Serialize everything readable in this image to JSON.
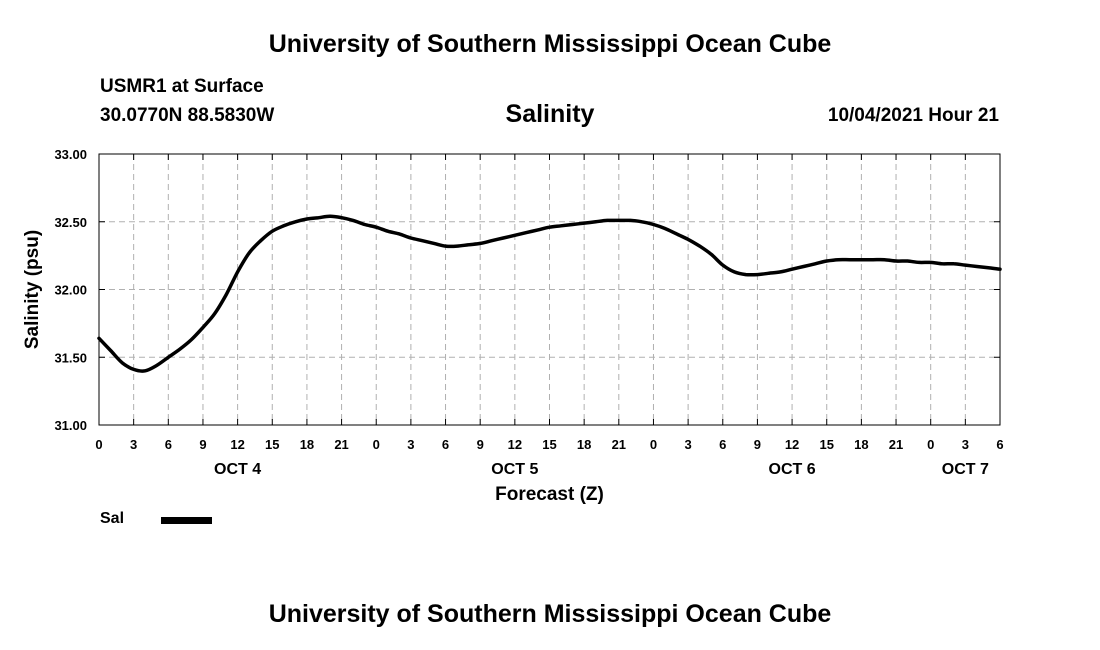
{
  "header": {
    "title": "University of Southern Mississippi Ocean Cube",
    "station": "USMR1 at Surface",
    "coords": "30.0770N  88.5830W",
    "forecast_time": "10/04/2021 Hour 21"
  },
  "footer": {
    "title": "University of Southern Mississippi Ocean Cube"
  },
  "legend": {
    "label": "Sal",
    "color": "#000000"
  },
  "chart_data": {
    "type": "line",
    "title": "Salinity",
    "xlabel": "Forecast (Z)",
    "ylabel": "Salinity (psu)",
    "ylim": [
      31.0,
      33.0
    ],
    "yticks": [
      "31.00",
      "31.50",
      "32.00",
      "32.50",
      "33.00"
    ],
    "xlim": [
      0,
      78
    ],
    "xtick_labels": [
      "0",
      "3",
      "6",
      "9",
      "12",
      "15",
      "18",
      "21",
      "0",
      "3",
      "6",
      "9",
      "12",
      "15",
      "18",
      "21",
      "0",
      "3",
      "6",
      "9",
      "12",
      "15",
      "18",
      "21",
      "0",
      "3",
      "6"
    ],
    "date_labels": [
      {
        "label": "OCT 4",
        "hour": 12
      },
      {
        "label": "OCT 5",
        "hour": 36
      },
      {
        "label": "OCT 6",
        "hour": 60
      },
      {
        "label": "OCT 7",
        "hour": 75
      }
    ],
    "grid": true,
    "series": [
      {
        "name": "Sal",
        "color": "#000000",
        "x": [
          0,
          1,
          2,
          3,
          4,
          5,
          6,
          7,
          8,
          9,
          10,
          11,
          12,
          13,
          14,
          15,
          16,
          17,
          18,
          19,
          20,
          21,
          22,
          23,
          24,
          25,
          26,
          27,
          28,
          29,
          30,
          31,
          32,
          33,
          34,
          35,
          36,
          37,
          38,
          39,
          40,
          41,
          42,
          43,
          44,
          45,
          46,
          47,
          48,
          49,
          50,
          51,
          52,
          53,
          54,
          55,
          56,
          57,
          58,
          59,
          60,
          61,
          62,
          63,
          64,
          65,
          66,
          67,
          68,
          69,
          70,
          71,
          72,
          73,
          74,
          75,
          76,
          77,
          78
        ],
        "values": [
          31.64,
          31.55,
          31.46,
          31.41,
          31.4,
          31.44,
          31.5,
          31.56,
          31.63,
          31.72,
          31.82,
          31.96,
          32.13,
          32.27,
          32.36,
          32.43,
          32.47,
          32.5,
          32.52,
          32.53,
          32.54,
          32.53,
          32.51,
          32.48,
          32.46,
          32.43,
          32.41,
          32.38,
          32.36,
          32.34,
          32.32,
          32.32,
          32.33,
          32.34,
          32.36,
          32.38,
          32.4,
          32.42,
          32.44,
          32.46,
          32.47,
          32.48,
          32.49,
          32.5,
          32.51,
          32.51,
          32.51,
          32.5,
          32.48,
          32.45,
          32.41,
          32.37,
          32.32,
          32.26,
          32.18,
          32.13,
          32.11,
          32.11,
          32.12,
          32.13,
          32.15,
          32.17,
          32.19,
          32.21,
          32.22,
          32.22,
          32.22,
          32.22,
          32.22,
          32.21,
          32.21,
          32.2,
          32.2,
          32.19,
          32.19,
          32.18,
          32.17,
          32.16,
          32.15
        ]
      }
    ]
  }
}
